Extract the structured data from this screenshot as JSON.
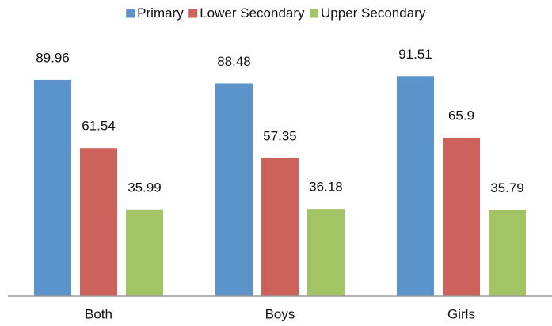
{
  "chart_data": {
    "type": "bar",
    "categories": [
      "Both",
      "Boys",
      "Girls"
    ],
    "series": [
      {
        "name": "Primary",
        "color": "#5b93cb",
        "values": [
          89.96,
          88.48,
          91.51
        ]
      },
      {
        "name": "Lower Secondary",
        "color": "#cc625b",
        "values": [
          61.54,
          57.35,
          65.9
        ]
      },
      {
        "name": "Upper Secondary",
        "color": "#a3c465",
        "values": [
          35.99,
          36.18,
          35.79
        ]
      }
    ],
    "ylim": [
      0,
      100
    ],
    "legend": "top"
  }
}
